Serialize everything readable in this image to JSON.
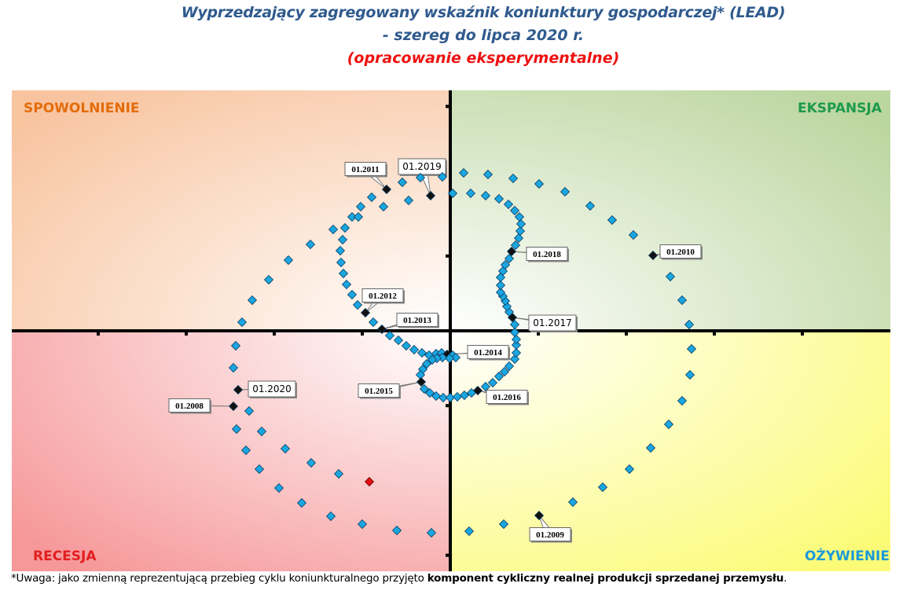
{
  "chart_data": {
    "type": "scatter",
    "title": [
      "Wyprzedzający zagregowany wskaźnik koniunktury gospodarczej* (LEAD)",
      "- szereg do lipca 2020 r."
    ],
    "subtitle": "(opracowanie eksperymentalne)",
    "xlim": [
      -5.58,
      5.6
    ],
    "ylim": [
      -3.06,
      3.06
    ],
    "tick_step": 1.12,
    "grid": false,
    "quadrants": {
      "top_left": {
        "label": "SPOWOLNIENIE",
        "color": "#e46c0a",
        "bg": "#f8c4a0"
      },
      "top_right": {
        "label": "EKSPANSJA",
        "color": "#1e9a4c",
        "bg": "#bcd6a0"
      },
      "bottom_left": {
        "label": "RECESJA",
        "color": "#e21f1f",
        "bg": "#f6989a"
      },
      "bottom_right": {
        "label": "OŻYWIENIE",
        "color": "#1b9ad8",
        "bg": "#fbfb78"
      }
    },
    "colors": {
      "point": "#1aa6e0",
      "marked": "#111111",
      "latest": "#e01010"
    },
    "points": [
      {
        "x": -2.76,
        "y": -0.96,
        "label": "01.2008"
      },
      {
        "x": -2.72,
        "y": -1.25
      },
      {
        "x": -2.6,
        "y": -1.52
      },
      {
        "x": -2.43,
        "y": -1.76
      },
      {
        "x": -2.18,
        "y": -2.0
      },
      {
        "x": -1.89,
        "y": -2.19
      },
      {
        "x": -1.52,
        "y": -2.36
      },
      {
        "x": -1.12,
        "y": -2.46
      },
      {
        "x": -0.68,
        "y": -2.54
      },
      {
        "x": -0.24,
        "y": -2.57
      },
      {
        "x": 0.24,
        "y": -2.55
      },
      {
        "x": 0.68,
        "y": -2.46
      },
      {
        "x": 1.13,
        "y": -2.35,
        "label": "01.2009"
      },
      {
        "x": 1.56,
        "y": -2.18
      },
      {
        "x": 1.94,
        "y": -1.99
      },
      {
        "x": 2.28,
        "y": -1.76
      },
      {
        "x": 2.55,
        "y": -1.49
      },
      {
        "x": 2.78,
        "y": -1.19
      },
      {
        "x": 2.95,
        "y": -0.89
      },
      {
        "x": 3.05,
        "y": -0.56
      },
      {
        "x": 3.07,
        "y": -0.23
      },
      {
        "x": 3.04,
        "y": 0.08
      },
      {
        "x": 2.95,
        "y": 0.39
      },
      {
        "x": 2.8,
        "y": 0.69
      },
      {
        "x": 2.58,
        "y": 0.96,
        "label": "01.2010"
      },
      {
        "x": 2.33,
        "y": 1.22
      },
      {
        "x": 2.06,
        "y": 1.41
      },
      {
        "x": 1.78,
        "y": 1.59
      },
      {
        "x": 1.46,
        "y": 1.77
      },
      {
        "x": 1.13,
        "y": 1.87
      },
      {
        "x": 0.8,
        "y": 1.94
      },
      {
        "x": 0.48,
        "y": 1.99
      },
      {
        "x": 0.17,
        "y": 2.01
      },
      {
        "x": -0.1,
        "y": 1.96
      },
      {
        "x": -0.38,
        "y": 1.95
      },
      {
        "x": -0.61,
        "y": 1.89
      },
      {
        "x": -0.81,
        "y": 1.8,
        "label": "01.2011"
      },
      {
        "x": -1.0,
        "y": 1.7
      },
      {
        "x": -1.14,
        "y": 1.58
      },
      {
        "x": -1.25,
        "y": 1.45
      },
      {
        "x": -1.34,
        "y": 1.31
      },
      {
        "x": -1.37,
        "y": 1.16
      },
      {
        "x": -1.4,
        "y": 1.02
      },
      {
        "x": -1.39,
        "y": 0.87
      },
      {
        "x": -1.36,
        "y": 0.73
      },
      {
        "x": -1.32,
        "y": 0.59
      },
      {
        "x": -1.25,
        "y": 0.46
      },
      {
        "x": -1.18,
        "y": 0.33
      },
      {
        "x": -1.08,
        "y": 0.23,
        "label": "01.2012"
      },
      {
        "x": -0.98,
        "y": 0.11
      },
      {
        "x": -0.87,
        "y": 0.02,
        "label": "01.2013"
      },
      {
        "x": -0.77,
        "y": -0.06
      },
      {
        "x": -0.66,
        "y": -0.12
      },
      {
        "x": -0.56,
        "y": -0.19
      },
      {
        "x": -0.46,
        "y": -0.24
      },
      {
        "x": -0.36,
        "y": -0.28
      },
      {
        "x": -0.27,
        "y": -0.31
      },
      {
        "x": -0.18,
        "y": -0.29
      },
      {
        "x": -0.11,
        "y": -0.28
      },
      {
        "x": -0.04,
        "y": -0.3,
        "label": "01.2014"
      },
      {
        "x": 0.03,
        "y": -0.31
      },
      {
        "x": 0.07,
        "y": -0.34
      },
      {
        "x": -0.01,
        "y": -0.35
      },
      {
        "x": -0.1,
        "y": -0.34
      },
      {
        "x": -0.17,
        "y": -0.35
      },
      {
        "x": -0.23,
        "y": -0.37
      },
      {
        "x": -0.3,
        "y": -0.42
      },
      {
        "x": -0.35,
        "y": -0.49
      },
      {
        "x": -0.38,
        "y": -0.56
      },
      {
        "x": -0.37,
        "y": -0.65,
        "label": "01.2015"
      },
      {
        "x": -0.33,
        "y": -0.74
      },
      {
        "x": -0.26,
        "y": -0.79
      },
      {
        "x": -0.18,
        "y": -0.83
      },
      {
        "x": -0.09,
        "y": -0.85
      },
      {
        "x": 0.0,
        "y": -0.85
      },
      {
        "x": 0.09,
        "y": -0.84
      },
      {
        "x": 0.18,
        "y": -0.82
      },
      {
        "x": 0.27,
        "y": -0.79
      },
      {
        "x": 0.35,
        "y": -0.76,
        "label": "01.2016"
      },
      {
        "x": 0.45,
        "y": -0.71
      },
      {
        "x": 0.54,
        "y": -0.66
      },
      {
        "x": 0.62,
        "y": -0.58
      },
      {
        "x": 0.69,
        "y": -0.52
      },
      {
        "x": 0.75,
        "y": -0.45
      },
      {
        "x": 0.82,
        "y": -0.36
      },
      {
        "x": 0.84,
        "y": -0.28
      },
      {
        "x": 0.84,
        "y": -0.18
      },
      {
        "x": 0.84,
        "y": -0.11
      },
      {
        "x": 0.82,
        "y": -0.02
      },
      {
        "x": 0.82,
        "y": 0.08
      },
      {
        "x": 0.79,
        "y": 0.17,
        "label": "01.2017"
      },
      {
        "x": 0.75,
        "y": 0.24
      },
      {
        "x": 0.72,
        "y": 0.31
      },
      {
        "x": 0.7,
        "y": 0.38
      },
      {
        "x": 0.67,
        "y": 0.44
      },
      {
        "x": 0.64,
        "y": 0.49
      },
      {
        "x": 0.64,
        "y": 0.58
      },
      {
        "x": 0.64,
        "y": 0.68
      },
      {
        "x": 0.67,
        "y": 0.76
      },
      {
        "x": 0.7,
        "y": 0.84
      },
      {
        "x": 0.75,
        "y": 0.92
      },
      {
        "x": 0.78,
        "y": 1.01,
        "label": "01.2018"
      },
      {
        "x": 0.83,
        "y": 1.09
      },
      {
        "x": 0.87,
        "y": 1.18
      },
      {
        "x": 0.89,
        "y": 1.27
      },
      {
        "x": 0.9,
        "y": 1.36
      },
      {
        "x": 0.88,
        "y": 1.45
      },
      {
        "x": 0.82,
        "y": 1.53
      },
      {
        "x": 0.74,
        "y": 1.61
      },
      {
        "x": 0.62,
        "y": 1.68
      },
      {
        "x": 0.45,
        "y": 1.72
      },
      {
        "x": 0.26,
        "y": 1.75
      },
      {
        "x": 0.03,
        "y": 1.75
      },
      {
        "x": -0.25,
        "y": 1.72,
        "label": "01.2019"
      },
      {
        "x": -0.53,
        "y": 1.66
      },
      {
        "x": -0.85,
        "y": 1.58
      },
      {
        "x": -1.17,
        "y": 1.45
      },
      {
        "x": -1.49,
        "y": 1.29
      },
      {
        "x": -1.78,
        "y": 1.1
      },
      {
        "x": -2.06,
        "y": 0.9
      },
      {
        "x": -2.31,
        "y": 0.65
      },
      {
        "x": -2.52,
        "y": 0.39
      },
      {
        "x": -2.65,
        "y": 0.11
      },
      {
        "x": -2.73,
        "y": -0.19
      },
      {
        "x": -2.76,
        "y": -0.47
      },
      {
        "x": -2.7,
        "y": -0.75,
        "label": "01.2020"
      },
      {
        "x": -2.56,
        "y": -1.02
      },
      {
        "x": -2.4,
        "y": -1.28
      },
      {
        "x": -2.1,
        "y": -1.5
      },
      {
        "x": -1.77,
        "y": -1.68
      },
      {
        "x": -1.42,
        "y": -1.82
      },
      {
        "x": -1.03,
        "y": -1.92,
        "latest": true
      }
    ]
  },
  "footnote": {
    "prefix": "*Uwaga: jako zmienną reprezentującą przebieg cyklu koniunkturalnego przyjęto ",
    "bold": "komponent cykliczny realnej produkcji sprzedanej przemysłu",
    "suffix": "."
  }
}
